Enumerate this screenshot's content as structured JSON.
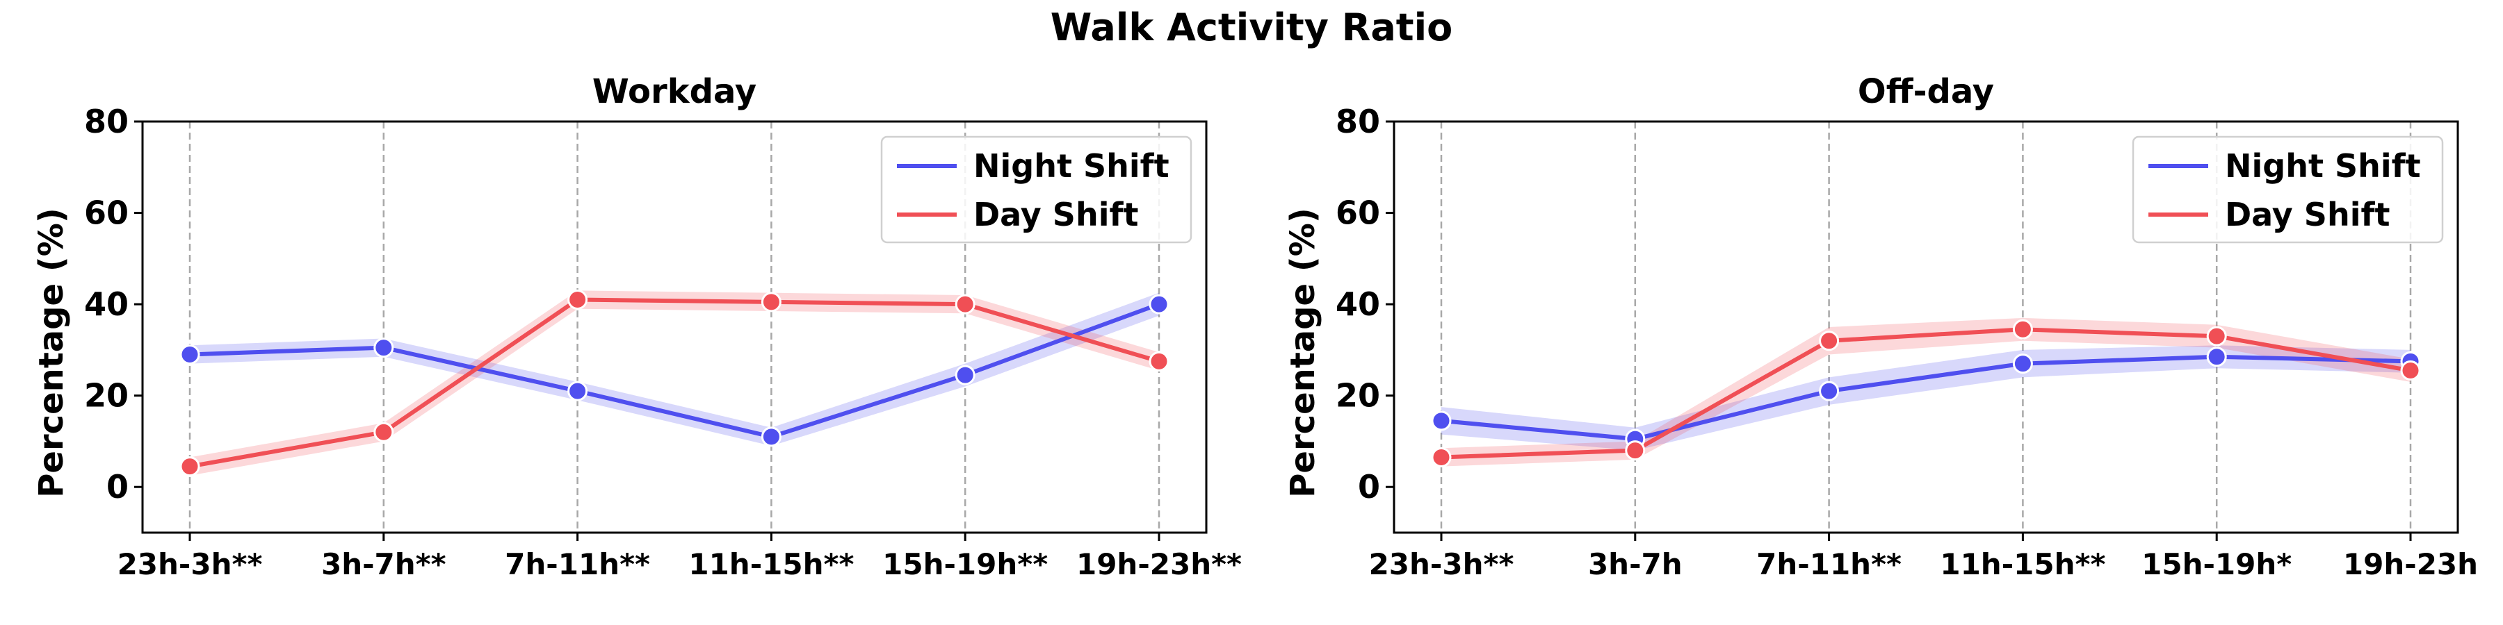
{
  "title": "Walk Activity Ratio",
  "colors": {
    "night": "#4f4fef",
    "day": "#f04f55"
  },
  "chart_data": [
    {
      "type": "line",
      "title": "Workday",
      "ylabel": "Percentage (%)",
      "ylim": [
        -10,
        80
      ],
      "yticks": [
        0,
        20,
        40,
        60,
        80
      ],
      "grid": "vertical dashed at each category",
      "legend_position": "top-right",
      "categories": [
        "23h-3h**",
        "3h-7h**",
        "7h-11h**",
        "11h-15h**",
        "15h-19h**",
        "19h-23h**"
      ],
      "series": [
        {
          "name": "Night Shift",
          "color": "#4f4fef",
          "values": [
            29,
            30.5,
            21,
            11,
            24.5,
            40
          ],
          "ci_lower": [
            27,
            28.5,
            19,
            9,
            22,
            37.5
          ],
          "ci_upper": [
            31,
            32.5,
            23,
            13,
            27,
            42.5
          ]
        },
        {
          "name": "Day Shift",
          "color": "#f04f55",
          "values": [
            4.5,
            12,
            41,
            40.5,
            40,
            27.5
          ],
          "ci_lower": [
            2.5,
            10,
            39,
            38.5,
            38,
            25.5
          ],
          "ci_upper": [
            6.5,
            14,
            43,
            42.5,
            42,
            29.5
          ]
        }
      ]
    },
    {
      "type": "line",
      "title": "Off-day",
      "ylabel": "Percentage (%)",
      "ylim": [
        -10,
        80
      ],
      "yticks": [
        0,
        20,
        40,
        60,
        80
      ],
      "grid": "vertical dashed at each category",
      "legend_position": "top-right",
      "categories": [
        "23h-3h**",
        "3h-7h",
        "7h-11h**",
        "11h-15h**",
        "15h-19h*",
        "19h-23h"
      ],
      "series": [
        {
          "name": "Night Shift",
          "color": "#4f4fef",
          "values": [
            14.5,
            10.5,
            21,
            27,
            28.5,
            27.5
          ],
          "ci_lower": [
            11.5,
            8,
            18,
            24,
            26,
            25
          ],
          "ci_upper": [
            17.5,
            13,
            24,
            30,
            31,
            30
          ]
        },
        {
          "name": "Day Shift",
          "color": "#f04f55",
          "values": [
            6.5,
            8,
            32,
            34.5,
            33,
            25.5
          ],
          "ci_lower": [
            4.5,
            6,
            29,
            32,
            30.5,
            23
          ],
          "ci_upper": [
            8.5,
            10,
            35,
            37,
            35.5,
            28
          ]
        }
      ]
    }
  ]
}
